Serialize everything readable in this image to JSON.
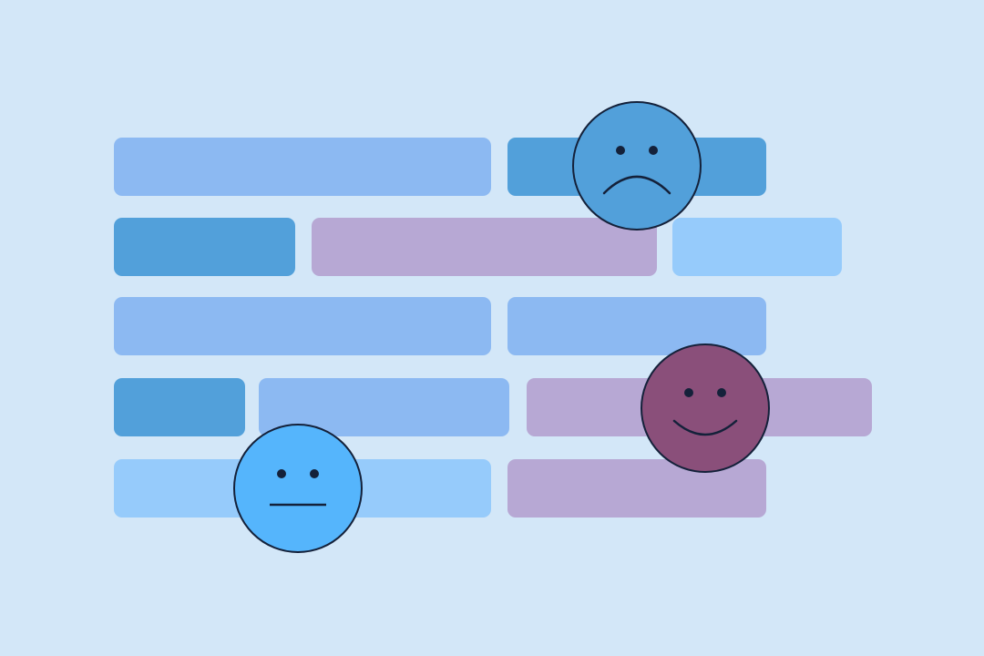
{
  "background": "#d3e7f8",
  "colors": {
    "light_blue": "#8cb9f2",
    "mid_blue": "#52a0da",
    "pale_blue": "#96cbfb",
    "lavender": "#b7a8d4",
    "outline": "#14213a"
  },
  "rows": [
    [
      "light_blue",
      "mid_blue"
    ],
    [
      "mid_blue",
      "lavender",
      "pale_blue"
    ],
    [
      "light_blue",
      "light_blue"
    ],
    [
      "mid_blue",
      "light_blue",
      "lavender"
    ],
    [
      "pale_blue",
      "lavender"
    ]
  ],
  "faces": [
    {
      "mood": "sad",
      "icon": "sad-face-icon",
      "fill": "#52a0da"
    },
    {
      "mood": "happy",
      "icon": "happy-face-icon",
      "fill": "#8a4f7a"
    },
    {
      "mood": "neutral",
      "icon": "neutral-face-icon",
      "fill": "#55b5fc"
    }
  ]
}
